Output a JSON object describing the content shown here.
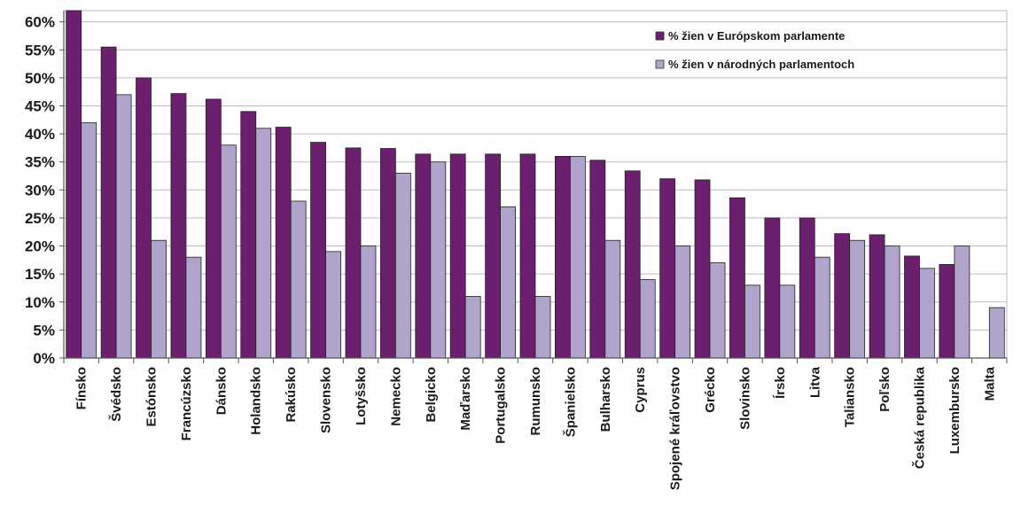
{
  "chart_data": {
    "type": "bar",
    "categories": [
      "Fínsko",
      "Švédsko",
      "Estónsko",
      "Francúzsko",
      "Dánsko",
      "Holandsko",
      "Rakúsko",
      "Slovensko",
      "Lotyšsko",
      "Nemecko",
      "Belgicko",
      "Maďarsko",
      "Portugalsko",
      "Rumunsko",
      "Španielsko",
      "Bulharsko",
      "Cyprus",
      "Spojené kráľovstvo",
      "Grécko",
      "Slovinsko",
      "Írsko",
      "Litva",
      "Taliansko",
      "Poľsko",
      "Česká republika",
      "Luxembursko",
      "Malta"
    ],
    "series": [
      {
        "name": "% žien v Európskom parlamente",
        "color": "#6b1f6e",
        "values": [
          62,
          55.5,
          50,
          47.2,
          46.2,
          44,
          41.2,
          38.5,
          37.5,
          37.4,
          36.4,
          36.4,
          36.4,
          36.4,
          36,
          35.3,
          33.4,
          32,
          31.8,
          28.6,
          25,
          25,
          22.2,
          22,
          18.2,
          16.7,
          0
        ]
      },
      {
        "name": "% žien v národných parlamentoch",
        "color": "#b0a4cc",
        "values": [
          42,
          47,
          21,
          18,
          38,
          41,
          28,
          19,
          20,
          33,
          35,
          11,
          27,
          11,
          36,
          21,
          14,
          20,
          17,
          13,
          13,
          18,
          21,
          20,
          16,
          20,
          9
        ]
      }
    ],
    "y_ticks": [
      "0%",
      "5%",
      "10%",
      "15%",
      "20%",
      "25%",
      "30%",
      "35%",
      "40%",
      "45%",
      "50%",
      "55%",
      "60%"
    ],
    "ylim": [
      0,
      62
    ],
    "grid": true,
    "legend_position": "top-right",
    "title": "",
    "xlabel": "",
    "ylabel": ""
  }
}
